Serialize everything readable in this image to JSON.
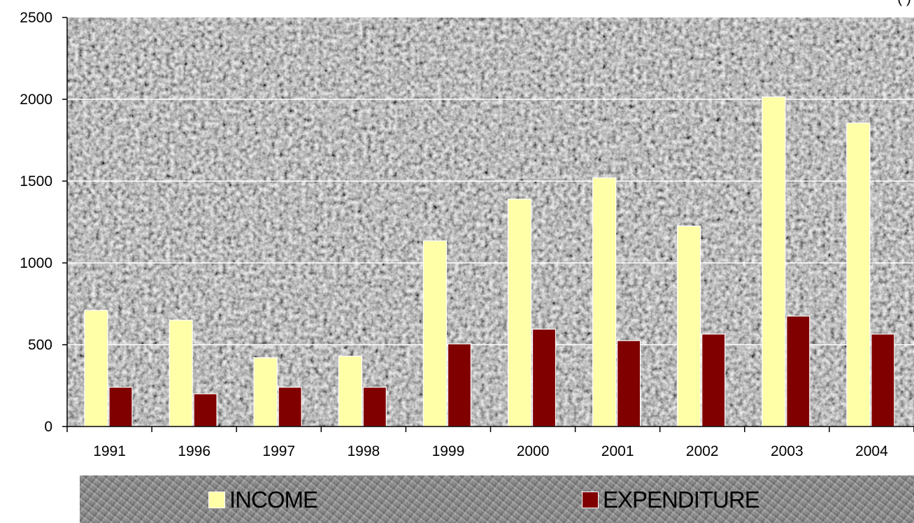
{
  "unit_label": "(         )",
  "chart_data": {
    "type": "bar",
    "categories": [
      "1991",
      "1996",
      "1997",
      "1998",
      "1999",
      "2000",
      "2001",
      "2002",
      "2003",
      "2004"
    ],
    "series": [
      {
        "name": "INCOME",
        "values": [
          710,
          650,
          420,
          430,
          1135,
          1390,
          1520,
          1225,
          2015,
          1855
        ],
        "color": "#ffffa8"
      },
      {
        "name": "EXPENDITURE",
        "values": [
          240,
          200,
          240,
          240,
          505,
          595,
          525,
          565,
          675,
          565
        ],
        "color": "#800000"
      }
    ],
    "yticks": [
      "0",
      "500",
      "1000",
      "1500",
      "2000",
      "2500"
    ],
    "ylim": [
      0,
      2500
    ],
    "grid": true,
    "legend_position": "bottom",
    "title": "",
    "xlabel": "",
    "ylabel": ""
  }
}
